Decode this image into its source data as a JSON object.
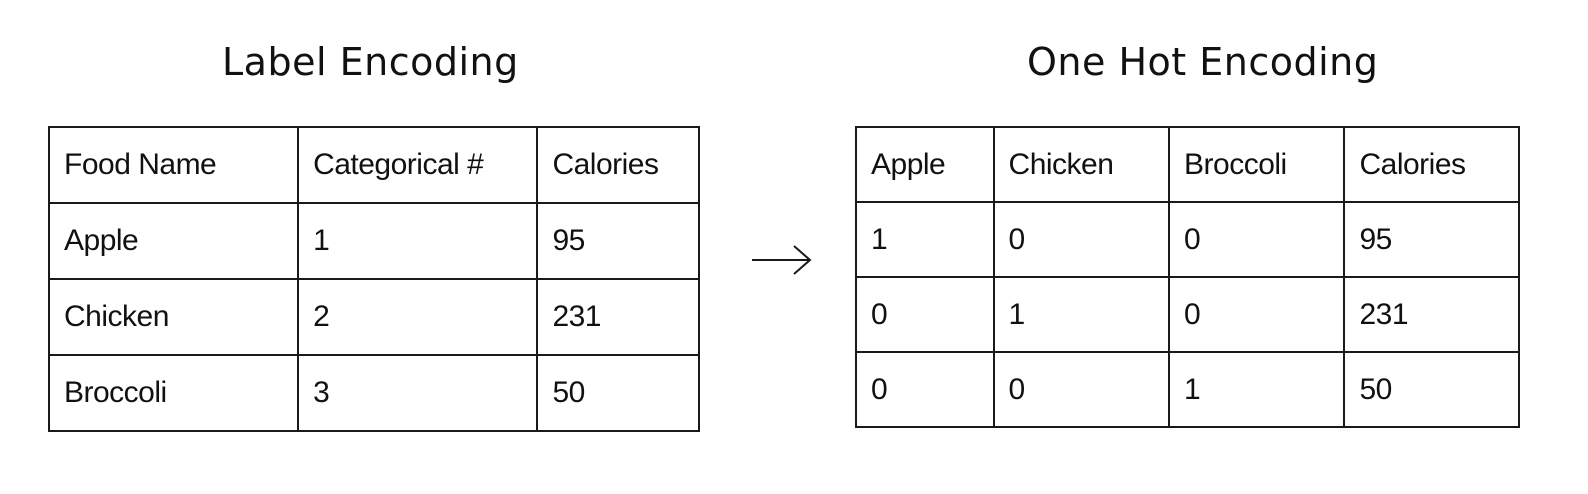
{
  "label_encoding": {
    "title": "Label Encoding",
    "headers": [
      "Food Name",
      "Categorical #",
      "Calories"
    ],
    "rows": [
      [
        "Apple",
        "1",
        "95"
      ],
      [
        "Chicken",
        "2",
        "231"
      ],
      [
        "Broccoli",
        "3",
        "50"
      ]
    ]
  },
  "one_hot_encoding": {
    "title": "One Hot Encoding",
    "headers": [
      "Apple",
      "Chicken",
      "Broccoli",
      "Calories"
    ],
    "rows": [
      [
        "1",
        "0",
        "0",
        "95"
      ],
      [
        "0",
        "1",
        "0",
        "231"
      ],
      [
        "0",
        "0",
        "1",
        "50"
      ]
    ]
  },
  "arrow": {
    "icon": "right-arrow-icon",
    "color": "#1a1a1a"
  }
}
